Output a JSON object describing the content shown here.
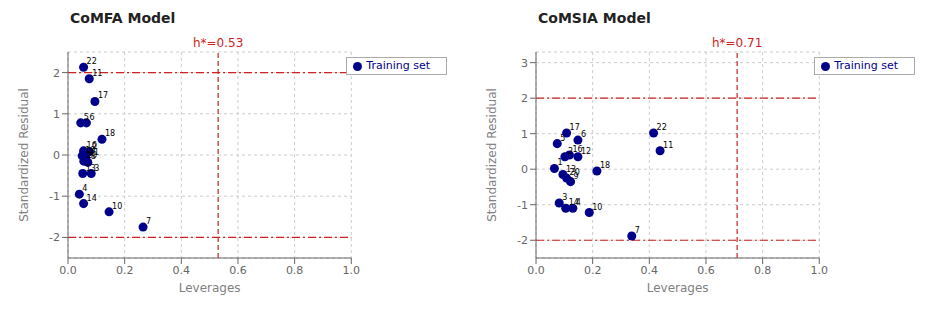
{
  "chart_data": [
    {
      "type": "scatter",
      "title": "CoMFA Model",
      "x_label": "Leverages",
      "y_label": "Standardized Residual",
      "xlim": [
        0.0,
        1.0
      ],
      "ylim": [
        -2.5,
        2.5
      ],
      "xticks": [
        {
          "value": 0.0,
          "label": "0.0"
        },
        0.2,
        0.4,
        0.6,
        0.8,
        {
          "value": 1.0,
          "label": "1.0"
        }
      ],
      "yticks": [
        -2,
        -1,
        0,
        1,
        2
      ],
      "grid": true,
      "legend": "upper right",
      "series": [
        {
          "name": "Training set",
          "color": "#00008b",
          "marker": "circle",
          "x": [
            0.055,
            0.075,
            0.095,
            0.045,
            0.065,
            0.12,
            0.055,
            0.075,
            0.05,
            0.063,
            0.056,
            0.07,
            0.052,
            0.082,
            0.04,
            0.055,
            0.145,
            0.265
          ],
          "y": [
            2.13,
            1.85,
            1.3,
            0.78,
            0.78,
            0.38,
            0.1,
            0.08,
            -0.02,
            -0.07,
            -0.15,
            -0.18,
            -0.45,
            -0.45,
            -0.95,
            -1.18,
            -1.38,
            -1.75
          ],
          "point_labels": [
            "22",
            "11",
            "17",
            "5",
            "6",
            "18",
            "16",
            "2",
            "19",
            "21",
            "20",
            "8",
            "13",
            "3",
            "4",
            "14",
            "10",
            "7"
          ]
        }
      ],
      "reference_lines": [
        {
          "axis": "y",
          "value": 2.0,
          "color": "#cc2222",
          "line_style": "dashdot"
        },
        {
          "axis": "y",
          "value": -2.0,
          "color": "#cc2222",
          "line_style": "dashdot"
        },
        {
          "axis": "x",
          "value": 0.53,
          "label": "h*=0.53",
          "color": "#cc2222",
          "line_style": "dashed"
        }
      ]
    },
    {
      "type": "scatter",
      "title": "CoMSIA Model",
      "x_label": "Leverages",
      "y_label": "Standardized Residual",
      "xlim": [
        0.0,
        1.0
      ],
      "ylim": [
        -2.5,
        3.3
      ],
      "xticks": [
        {
          "value": 0.0,
          "label": "0.0"
        },
        0.2,
        0.4,
        0.6,
        0.8,
        {
          "value": 1.0,
          "label": "1.0"
        }
      ],
      "yticks": [
        -2,
        -1,
        0,
        1,
        2,
        3
      ],
      "grid": true,
      "legend": "upper right",
      "series": [
        {
          "name": "Training set",
          "color": "#00008b",
          "marker": "circle",
          "x": [
            0.108,
            0.148,
            0.075,
            0.415,
            0.438,
            0.102,
            0.118,
            0.148,
            0.215,
            0.065,
            0.095,
            0.108,
            0.122,
            0.082,
            0.105,
            0.13,
            0.188,
            0.338
          ],
          "y": [
            1.02,
            0.82,
            0.72,
            1.02,
            0.52,
            0.35,
            0.4,
            0.35,
            -0.05,
            0.02,
            -0.15,
            -0.25,
            -0.35,
            -0.95,
            -1.1,
            -1.1,
            -1.22,
            -1.88
          ],
          "point_labels": [
            "17",
            "6",
            "5",
            "22",
            "11",
            "2",
            "16",
            "12",
            "18",
            "1",
            "13",
            "20",
            "9",
            "3",
            "14",
            "4",
            "10",
            "7"
          ]
        }
      ],
      "reference_lines": [
        {
          "axis": "y",
          "value": 2.0,
          "color": "#cc2222",
          "line_style": "dashdot"
        },
        {
          "axis": "y",
          "value": -2.0,
          "color": "#cc2222",
          "line_style": "dashdot"
        },
        {
          "axis": "x",
          "value": 0.71,
          "label": "h*=0.71",
          "color": "#cc2222",
          "line_style": "dashed"
        }
      ]
    }
  ]
}
